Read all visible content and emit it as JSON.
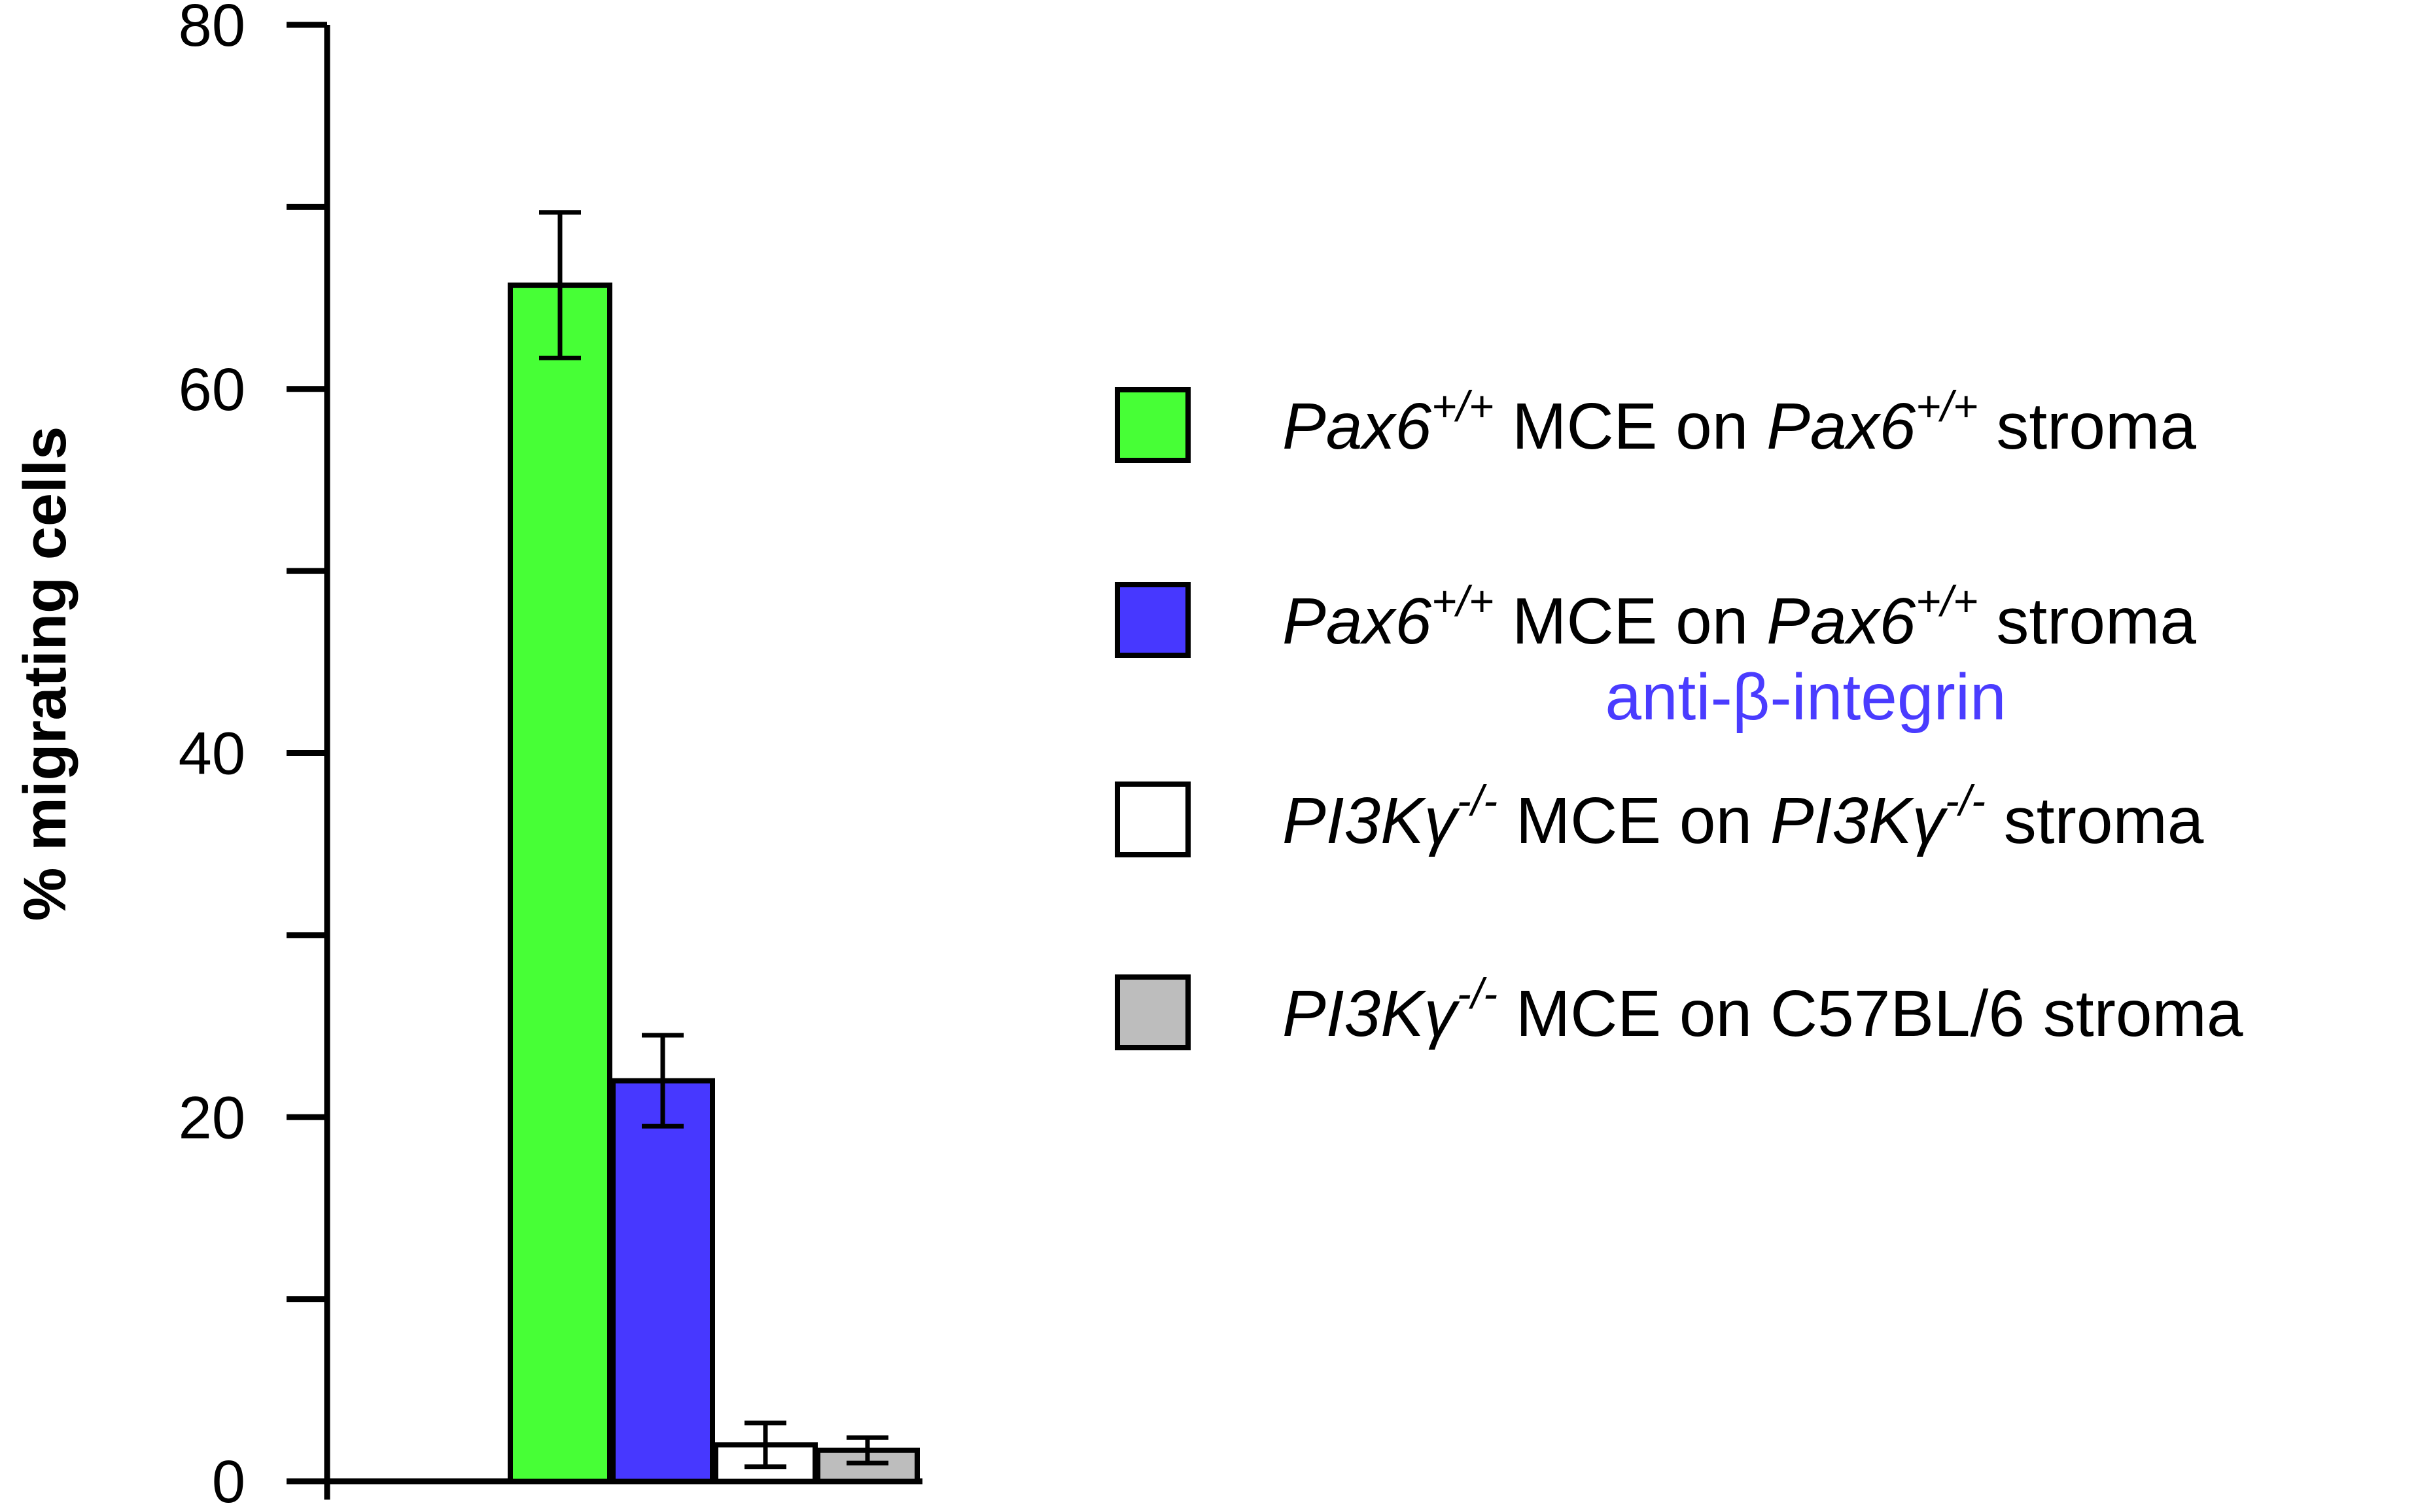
{
  "chart_data": {
    "type": "bar",
    "title": "",
    "xlabel": "",
    "ylabel": "% migrating cells",
    "ylim": [
      0,
      80
    ],
    "yticks": [
      0,
      20,
      40,
      60,
      80
    ],
    "ytick_labels": [
      "0",
      "20",
      "40",
      "60",
      "80"
    ],
    "grid": false,
    "legend_position": "right",
    "bars": [
      {
        "value": 65.7,
        "error": 4.0,
        "color": "#47ff36"
      },
      {
        "value": 22.0,
        "error": 2.5,
        "color": "#4738ff"
      },
      {
        "value": 2.0,
        "error": 1.2,
        "color": "#ffffff"
      },
      {
        "value": 1.7,
        "error": 0.7,
        "color": "#bdbdbd"
      }
    ]
  },
  "legend": [
    {
      "color": "#47ff36",
      "gene1": "Pax6",
      "sup1": "+/+",
      "middle": " MCE on ",
      "gene2": "Pax6",
      "sup2": "+/+",
      "end": " stroma",
      "note": ""
    },
    {
      "color": "#4738ff",
      "gene1": "Pax6",
      "sup1": "+/+",
      "middle": " MCE on ",
      "gene2": "Pax6",
      "sup2": "+/+",
      "end": " stroma",
      "note": "anti-β-integrin",
      "note_color": "#4a3cff"
    },
    {
      "color": "#ffffff",
      "gene1": "PI3Kγ",
      "sup1": "-/-",
      "middle": " MCE on ",
      "gene2": "PI3Kγ",
      "sup2": "-/-",
      "end": " stroma",
      "note": ""
    },
    {
      "color": "#bdbdbd",
      "gene1": "PI3Kγ",
      "sup1": "-/-",
      "middle": " MCE on C57BL/6 stroma",
      "gene2": "",
      "sup2": "",
      "end": "",
      "note": ""
    }
  ]
}
